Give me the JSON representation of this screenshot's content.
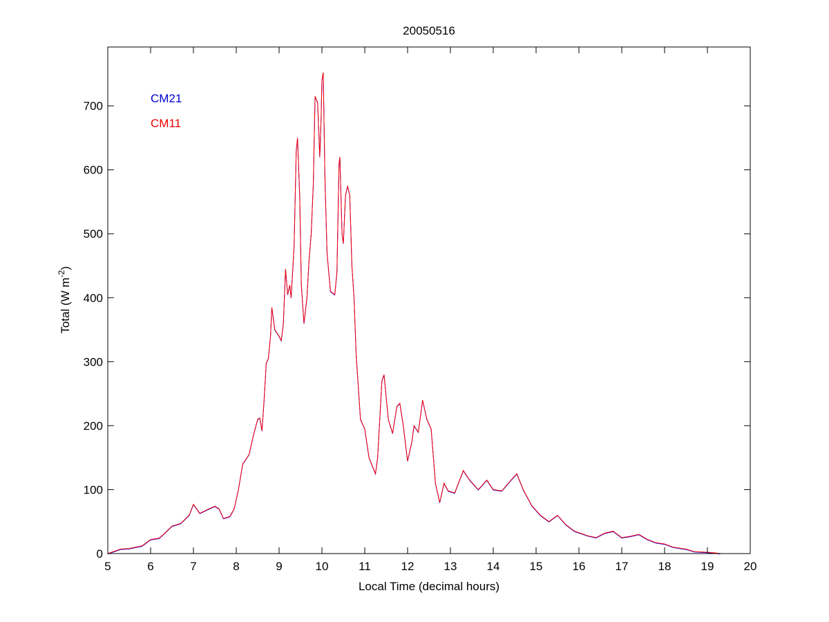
{
  "chart_data": {
    "type": "line",
    "title": "20050516",
    "xlabel": "Local Time (decimal hours)",
    "ylabel": {
      "main": "Total (W m",
      "sup": "-2",
      "end": ")"
    },
    "xlim": [
      5,
      20
    ],
    "ylim": [
      0,
      792
    ],
    "xticks": [
      5,
      6,
      7,
      8,
      9,
      10,
      11,
      12,
      13,
      14,
      15,
      16,
      17,
      18,
      19,
      20
    ],
    "yticks": [
      0,
      100,
      200,
      300,
      400,
      500,
      600,
      700
    ],
    "grid": false,
    "legend_placement": "top-left",
    "x": [
      5,
      5.3,
      5.5,
      5.8,
      6.0,
      6.2,
      6.3,
      6.5,
      6.7,
      6.9,
      7.0,
      7.15,
      7.3,
      7.5,
      7.6,
      7.7,
      7.85,
      7.95,
      8.05,
      8.15,
      8.3,
      8.4,
      8.5,
      8.55,
      8.6,
      8.65,
      8.7,
      8.75,
      8.8,
      8.83,
      8.9,
      9.0,
      9.05,
      9.1,
      9.15,
      9.2,
      9.25,
      9.28,
      9.35,
      9.4,
      9.43,
      9.48,
      9.52,
      9.58,
      9.65,
      9.7,
      9.75,
      9.8,
      9.84,
      9.9,
      9.95,
      9.98,
      10.0,
      10.03,
      10.07,
      10.12,
      10.2,
      10.3,
      10.35,
      10.4,
      10.42,
      10.47,
      10.5,
      10.55,
      10.6,
      10.65,
      10.7,
      10.75,
      10.8,
      10.9,
      11.0,
      11.1,
      11.25,
      11.3,
      11.4,
      11.45,
      11.55,
      11.65,
      11.75,
      11.82,
      11.9,
      12.0,
      12.1,
      12.15,
      12.25,
      12.35,
      12.45,
      12.55,
      12.65,
      12.75,
      12.85,
      12.95,
      13.1,
      13.3,
      13.45,
      13.65,
      13.85,
      14.0,
      14.2,
      14.35,
      14.55,
      14.7,
      14.9,
      15.1,
      15.3,
      15.5,
      15.7,
      15.9,
      16.2,
      16.4,
      16.6,
      16.8,
      17.0,
      17.2,
      17.4,
      17.6,
      17.8,
      18.0,
      18.2,
      18.5,
      18.7,
      19.0,
      19.2,
      19.3
    ],
    "series": [
      {
        "name": "CM21",
        "color": "#0000ff",
        "values": [
          0,
          7,
          8,
          12,
          22,
          24,
          30,
          43,
          47,
          60,
          77,
          63,
          68,
          74,
          70,
          55,
          58,
          70,
          100,
          140,
          155,
          185,
          210,
          212,
          192,
          240,
          298,
          305,
          340,
          385,
          350,
          340,
          333,
          360,
          445,
          405,
          420,
          400,
          480,
          630,
          650,
          560,
          420,
          360,
          400,
          460,
          500,
          580,
          715,
          705,
          620,
          680,
          740,
          752,
          590,
          470,
          410,
          405,
          440,
          610,
          620,
          500,
          485,
          560,
          575,
          560,
          450,
          400,
          310,
          210,
          195,
          150,
          125,
          150,
          270,
          280,
          210,
          188,
          230,
          235,
          200,
          145,
          175,
          200,
          190,
          240,
          210,
          195,
          110,
          80,
          110,
          98,
          95,
          130,
          115,
          100,
          115,
          100,
          98,
          110,
          125,
          100,
          75,
          60,
          50,
          60,
          45,
          35,
          28,
          25,
          32,
          35,
          25,
          27,
          30,
          22,
          17,
          15,
          10,
          7,
          3,
          2,
          1,
          0
        ]
      },
      {
        "name": "CM11",
        "color": "#ff0000",
        "values": [
          0,
          7,
          8,
          12,
          22,
          24,
          30,
          43,
          47,
          60,
          77,
          63,
          68,
          74,
          70,
          55,
          58,
          70,
          100,
          140,
          155,
          185,
          210,
          212,
          192,
          240,
          298,
          305,
          340,
          385,
          350,
          340,
          333,
          360,
          445,
          405,
          420,
          400,
          480,
          630,
          650,
          560,
          420,
          360,
          400,
          460,
          500,
          580,
          715,
          705,
          620,
          680,
          740,
          752,
          590,
          470,
          410,
          405,
          440,
          610,
          620,
          500,
          485,
          560,
          575,
          560,
          450,
          400,
          310,
          210,
          195,
          150,
          125,
          150,
          270,
          280,
          210,
          188,
          230,
          235,
          200,
          145,
          175,
          200,
          190,
          240,
          210,
          195,
          110,
          80,
          110,
          98,
          95,
          130,
          115,
          100,
          115,
          100,
          98,
          110,
          125,
          100,
          75,
          60,
          50,
          60,
          45,
          35,
          28,
          25,
          32,
          35,
          25,
          27,
          30,
          22,
          17,
          15,
          10,
          7,
          3,
          2,
          1,
          0
        ]
      }
    ]
  }
}
